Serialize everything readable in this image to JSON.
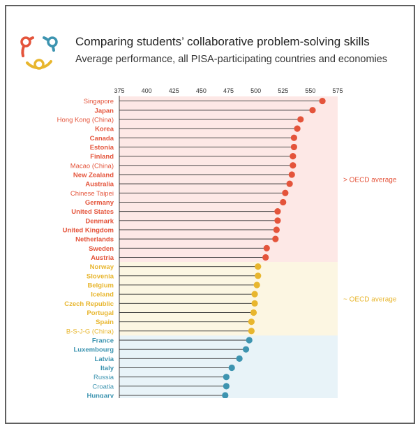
{
  "title": "Comparing students’ collaborative problem-solving skills",
  "subtitle": "Average performance, all PISA-participating countries and economies",
  "colors": {
    "above": "#e4543b",
    "similar": "#e8b62e",
    "below": "#3d94b0"
  },
  "chart_data": {
    "type": "lollipop",
    "title": "Comparing students’ collaborative problem-solving skills",
    "subtitle": "Average performance, all PISA-participating countries and economies",
    "x_ticks": [
      375,
      400,
      425,
      450,
      475,
      500,
      525,
      550,
      575
    ],
    "xlim": [
      375,
      575
    ],
    "baseline": 375,
    "bands": [
      {
        "group": "above",
        "label": "> OECD average",
        "color": "#fde8e6"
      },
      {
        "group": "similar",
        "label": "~ OECD average",
        "color": "#fcf6e2"
      },
      {
        "group": "below",
        "label": "",
        "color": "#e8f3f8"
      }
    ],
    "rows": [
      {
        "label": "Singapore",
        "value": 561,
        "group": "above",
        "bold": false
      },
      {
        "label": "Japan",
        "value": 552,
        "group": "above",
        "bold": true
      },
      {
        "label": "Hong Kong (China)",
        "value": 541,
        "group": "above",
        "bold": false
      },
      {
        "label": "Korea",
        "value": 538,
        "group": "above",
        "bold": true
      },
      {
        "label": "Canada",
        "value": 535,
        "group": "above",
        "bold": true
      },
      {
        "label": "Estonia",
        "value": 535,
        "group": "above",
        "bold": true
      },
      {
        "label": "Finland",
        "value": 534,
        "group": "above",
        "bold": true
      },
      {
        "label": "Macao (China)",
        "value": 534,
        "group": "above",
        "bold": false
      },
      {
        "label": "New Zealand",
        "value": 533,
        "group": "above",
        "bold": true
      },
      {
        "label": "Australia",
        "value": 531,
        "group": "above",
        "bold": true
      },
      {
        "label": "Chinese Taipei",
        "value": 527,
        "group": "above",
        "bold": false
      },
      {
        "label": "Germany",
        "value": 525,
        "group": "above",
        "bold": true
      },
      {
        "label": "United States",
        "value": 520,
        "group": "above",
        "bold": true
      },
      {
        "label": "Denmark",
        "value": 520,
        "group": "above",
        "bold": true
      },
      {
        "label": "United Kingdom",
        "value": 519,
        "group": "above",
        "bold": true
      },
      {
        "label": "Netherlands",
        "value": 518,
        "group": "above",
        "bold": true
      },
      {
        "label": "Sweden",
        "value": 510,
        "group": "above",
        "bold": true
      },
      {
        "label": "Austria",
        "value": 509,
        "group": "above",
        "bold": true
      },
      {
        "label": "Norway",
        "value": 502,
        "group": "similar",
        "bold": true
      },
      {
        "label": "Slovenia",
        "value": 502,
        "group": "similar",
        "bold": true
      },
      {
        "label": "Belgium",
        "value": 501,
        "group": "similar",
        "bold": true
      },
      {
        "label": "Iceland",
        "value": 499,
        "group": "similar",
        "bold": true
      },
      {
        "label": "Czech Republic",
        "value": 499,
        "group": "similar",
        "bold": true
      },
      {
        "label": "Portugal",
        "value": 498,
        "group": "similar",
        "bold": true
      },
      {
        "label": "Spain",
        "value": 496,
        "group": "similar",
        "bold": true
      },
      {
        "label": "B-S-J-G (China)",
        "value": 496,
        "group": "similar",
        "bold": false
      },
      {
        "label": "France",
        "value": 494,
        "group": "below",
        "bold": true
      },
      {
        "label": "Luxembourg",
        "value": 491,
        "group": "below",
        "bold": true
      },
      {
        "label": "Latvia",
        "value": 485,
        "group": "below",
        "bold": true
      },
      {
        "label": "Italy",
        "value": 478,
        "group": "below",
        "bold": true
      },
      {
        "label": "Russia",
        "value": 473,
        "group": "below",
        "bold": false
      },
      {
        "label": "Croatia",
        "value": 473,
        "group": "below",
        "bold": false
      },
      {
        "label": "Hungary",
        "value": 472,
        "group": "below",
        "bold": true
      }
    ]
  }
}
